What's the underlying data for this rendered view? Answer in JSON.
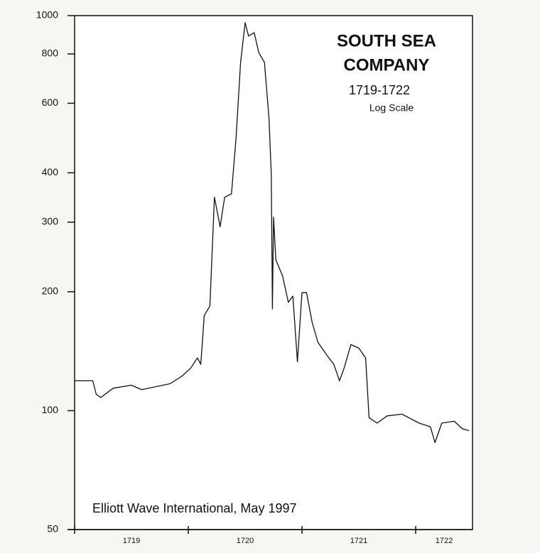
{
  "chart_data": {
    "type": "line",
    "title": [
      "SOUTH SEA",
      "COMPANY"
    ],
    "subtitle": "1719-1722",
    "scale_note": "Log Scale",
    "source": "Elliott Wave International, May 1997",
    "yscale": "log",
    "color": "#111111",
    "xlim": [
      1719,
      1722.5
    ],
    "xticks": [
      1719,
      1720,
      1721,
      1722
    ],
    "ylim": [
      50,
      1000
    ],
    "yticks": [
      50,
      100,
      200,
      300,
      400,
      600,
      800,
      1000
    ],
    "x": [
      1719.0,
      1719.16,
      1719.19,
      1719.23,
      1719.34,
      1719.5,
      1719.59,
      1719.84,
      1719.94,
      1720.02,
      1720.08,
      1720.11,
      1720.14,
      1720.19,
      1720.23,
      1720.28,
      1720.32,
      1720.38,
      1720.42,
      1720.46,
      1720.5,
      1720.53,
      1720.58,
      1720.62,
      1720.67,
      1720.71,
      1720.73,
      1720.74,
      1720.75,
      1720.77,
      1720.83,
      1720.88,
      1720.92,
      1720.96,
      1721.0,
      1721.04,
      1721.09,
      1721.14,
      1721.22,
      1721.28,
      1721.33,
      1721.37,
      1721.43,
      1721.5,
      1721.56,
      1721.59,
      1721.66,
      1721.75,
      1721.88,
      1722.03,
      1722.13,
      1722.17,
      1722.23,
      1722.34,
      1722.41,
      1722.47
    ],
    "series": [
      {
        "name": "South Sea Company",
        "color": "#111111",
        "values": [
          119,
          119,
          110,
          108,
          114,
          116,
          113,
          117,
          122,
          128,
          136,
          131,
          174,
          184,
          347,
          292,
          347,
          354,
          490,
          761,
          960,
          888,
          905,
          806,
          761,
          549,
          397,
          181,
          309,
          241,
          219,
          188,
          195,
          133,
          199,
          199,
          167,
          149,
          138,
          131,
          119,
          128,
          147,
          144,
          136,
          96,
          93,
          97,
          98,
          93,
          91,
          83,
          93,
          94,
          90,
          89
        ]
      }
    ]
  }
}
